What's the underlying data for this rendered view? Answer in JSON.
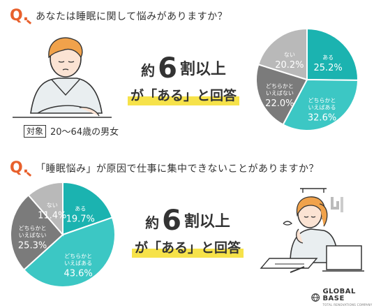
{
  "q_mark": "Q.",
  "section1": {
    "question": "あなたは睡眠に関して悩みがありますか？",
    "headline_prefix": "約",
    "headline_number": "6",
    "headline_suffix": "割以上",
    "headline_line2": "が「ある」と回答",
    "target_label": "対象",
    "target_value": "20～64歳の男女"
  },
  "section2": {
    "question": "「睡眠悩み」が原因で仕事に集中できないことがありますか？",
    "headline_prefix": "約",
    "headline_number": "6",
    "headline_suffix": "割以上",
    "headline_line2": "が「ある」と回答"
  },
  "logo": {
    "name": "GLOBAL BASE",
    "sub": "TOTAL RENOVATIONS COMPANY"
  },
  "colors": {
    "accent": "#e8602c",
    "highlight": "#f6e24a",
    "teal_dark": "#1bb3b0",
    "teal_light": "#3cc7c4",
    "gray_dark": "#7b7b7b",
    "gray_light": "#b9b9b9"
  },
  "chart_data": [
    {
      "type": "pie",
      "title": "あなたは睡眠に関して悩みがありますか？",
      "slices": [
        {
          "label": [
            "ある"
          ],
          "value": 25.2,
          "color": "#1bb3b0"
        },
        {
          "label": [
            "どちらかと",
            "いえばある"
          ],
          "value": 32.6,
          "color": "#3cc7c4"
        },
        {
          "label": [
            "どちらかと",
            "いえばない"
          ],
          "value": 22.0,
          "color": "#7b7b7b"
        },
        {
          "label": [
            "ない"
          ],
          "value": 20.2,
          "color": "#b9b9b9"
        }
      ]
    },
    {
      "type": "pie",
      "title": "「睡眠悩み」が原因で仕事に集中できないことがありますか？",
      "slices": [
        {
          "label": [
            "ある"
          ],
          "value": 19.7,
          "color": "#1bb3b0"
        },
        {
          "label": [
            "どちらかと",
            "いえばある"
          ],
          "value": 43.6,
          "color": "#3cc7c4"
        },
        {
          "label": [
            "どちらかと",
            "いえばない"
          ],
          "value": 25.3,
          "color": "#7b7b7b"
        },
        {
          "label": [
            "ない"
          ],
          "value": 11.4,
          "color": "#b9b9b9"
        }
      ]
    }
  ]
}
